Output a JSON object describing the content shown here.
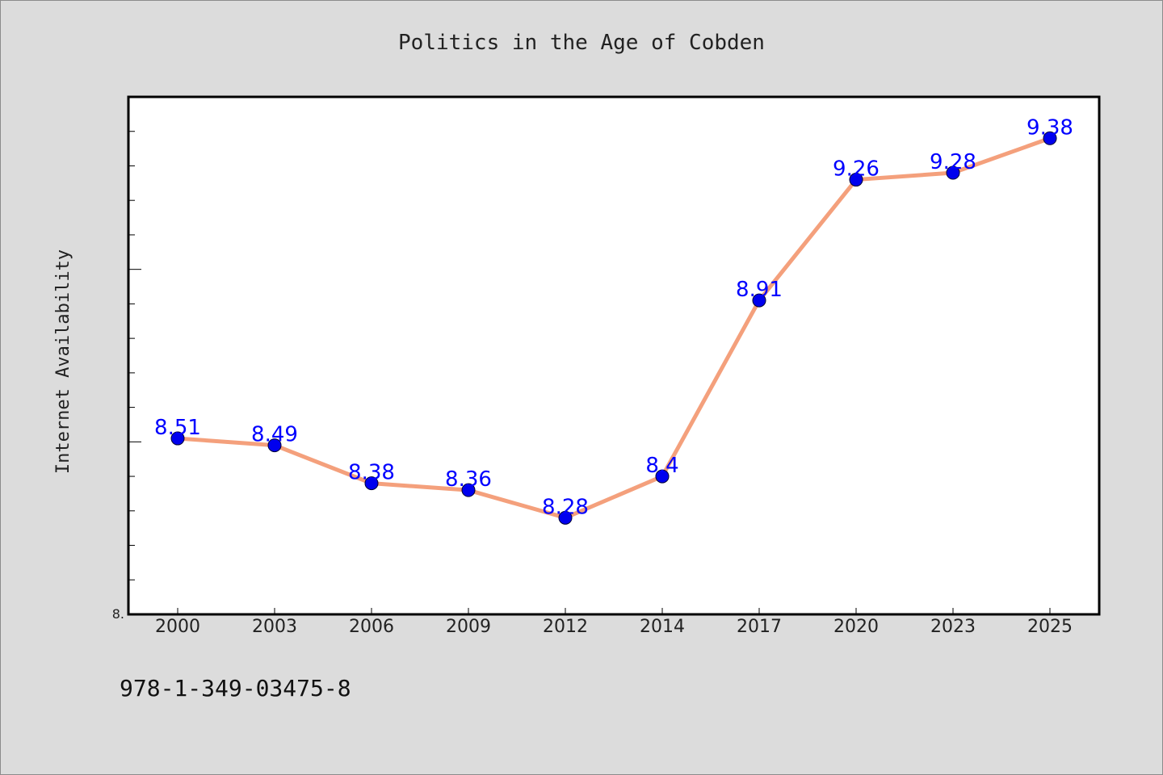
{
  "chart_data": {
    "type": "line",
    "title": "Politics in the Age of Cobden",
    "xlabel": "",
    "ylabel": "Internet Availability",
    "categories": [
      "2000",
      "2003",
      "2006",
      "2009",
      "2012",
      "2014",
      "2017",
      "2020",
      "2023",
      "2025"
    ],
    "series": [
      {
        "values": [
          8.51,
          8.49,
          8.38,
          8.36,
          8.28,
          8.4,
          8.91,
          9.26,
          9.28,
          9.38
        ],
        "labels": [
          "8.51",
          "8.49",
          "8.38",
          "8.36",
          "8.28",
          "8.4",
          "8.91",
          "9.26",
          "9.28",
          "9.38"
        ]
      }
    ],
    "ylim": [
      8.0,
      9.5
    ],
    "ytick_label": "8.",
    "grid": false,
    "legend": "none",
    "colors": {
      "line": "#f4a07c",
      "marker": "#0000ee",
      "data_label": "#0000ff",
      "background": "#dcdcdc",
      "plot_background": "#ffffff"
    }
  },
  "footer": {
    "isbn": "978-1-349-03475-8"
  }
}
